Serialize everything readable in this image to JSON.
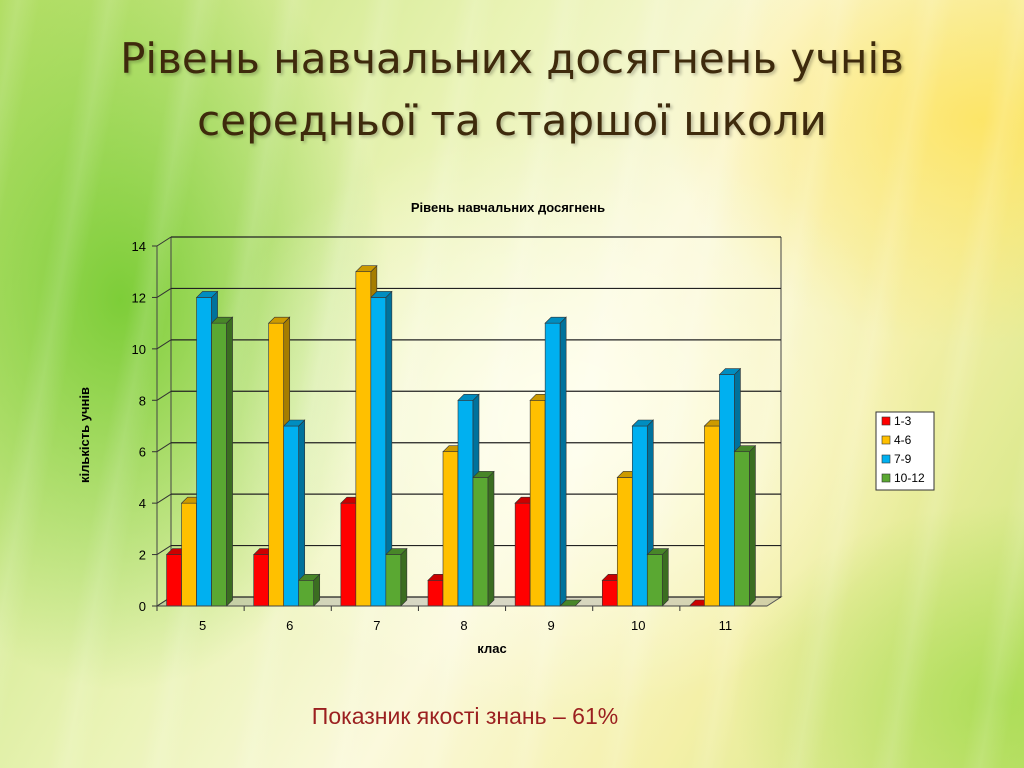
{
  "slide": {
    "title_line1": "Рівень навчальних досягнень учнів",
    "title_line2": "середньої та старшої школи",
    "footer": "Показник якості знань – 61%"
  },
  "chart_data": {
    "type": "bar",
    "title": "Рівень навчальних досягнень",
    "xlabel": "клас",
    "ylabel": "кількість учнів",
    "categories": [
      "5",
      "6",
      "7",
      "8",
      "9",
      "10",
      "11"
    ],
    "series": [
      {
        "name": "1-3",
        "color": "#ff0000",
        "values": [
          2,
          2,
          4,
          1,
          4,
          1,
          0
        ]
      },
      {
        "name": "4-6",
        "color": "#ffc000",
        "values": [
          4,
          11,
          13,
          6,
          8,
          5,
          7
        ]
      },
      {
        "name": "7-9",
        "color": "#00b0f0",
        "values": [
          12,
          7,
          12,
          8,
          11,
          7,
          9
        ]
      },
      {
        "name": "10-12",
        "color": "#5aa832",
        "values": [
          11,
          1,
          2,
          5,
          0,
          2,
          6
        ]
      }
    ],
    "ylim": [
      0,
      14
    ],
    "yticks": [
      0,
      2,
      4,
      6,
      8,
      10,
      12,
      14
    ],
    "grid": true,
    "legend_position": "right"
  }
}
